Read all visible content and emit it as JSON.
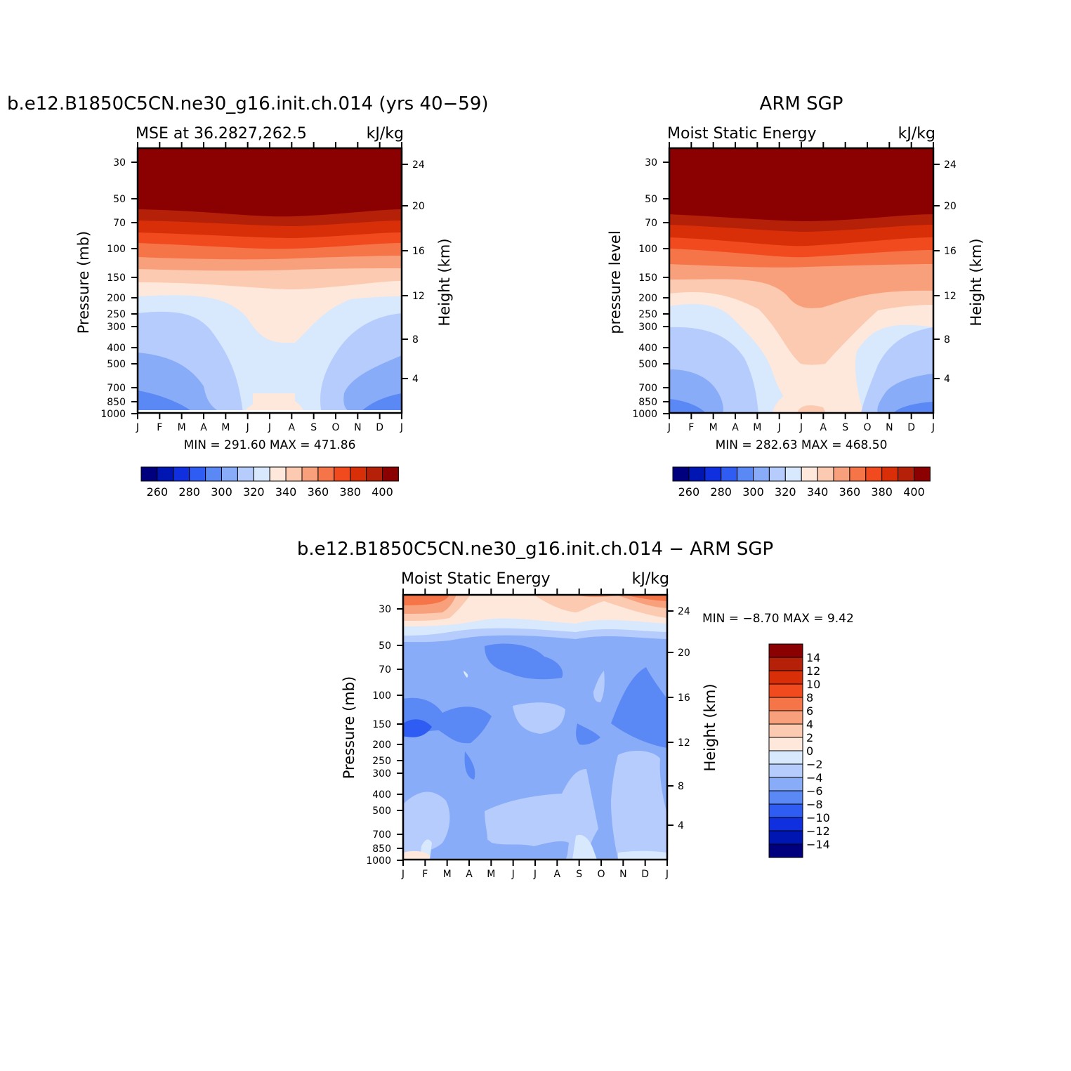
{
  "chart_data": [
    {
      "type": "heatmap",
      "id": "model",
      "title": "b.e12.B1850C5CN.ne30_g16.init.ch.014 (yrs 40−59)",
      "subtitle_left": "MSE at 36.2827,262.5",
      "subtitle_right": "kJ/kg",
      "ylabel": "Pressure (mb)",
      "ylabel_right": "Height (km)",
      "x_ticks": [
        "J",
        "F",
        "M",
        "A",
        "M",
        "J",
        "J",
        "A",
        "S",
        "O",
        "N",
        "D",
        "J"
      ],
      "y_ticks": [
        "30",
        "50",
        "70",
        "100",
        "150",
        "200",
        "250",
        "300",
        "400",
        "500",
        "700",
        "850",
        "1000"
      ],
      "y_ticks_right": [
        "24",
        "20",
        "16",
        "12",
        "8",
        "4"
      ],
      "stats": "MIN =  291.60  MAX =  471.86",
      "colorbar_labels": [
        "260",
        "280",
        "300",
        "320",
        "340",
        "360",
        "380",
        "400"
      ]
    },
    {
      "type": "heatmap",
      "id": "obs",
      "title": "ARM SGP",
      "subtitle_left": "Moist Static Energy",
      "subtitle_right": "kJ/kg",
      "ylabel": "pressure level",
      "ylabel_right": "Height (km)",
      "x_ticks": [
        "J",
        "F",
        "M",
        "A",
        "M",
        "J",
        "J",
        "A",
        "S",
        "O",
        "N",
        "D",
        "J"
      ],
      "y_ticks": [
        "30",
        "50",
        "70",
        "100",
        "150",
        "200",
        "250",
        "300",
        "400",
        "500",
        "700",
        "850",
        "1000"
      ],
      "y_ticks_right": [
        "24",
        "20",
        "16",
        "12",
        "8",
        "4"
      ],
      "stats": "MIN =  282.63  MAX =  468.50",
      "colorbar_labels": [
        "260",
        "280",
        "300",
        "320",
        "340",
        "360",
        "380",
        "400"
      ]
    },
    {
      "type": "heatmap",
      "id": "diff",
      "title": "b.e12.B1850C5CN.ne30_g16.init.ch.014 − ARM SGP",
      "subtitle_left": "Moist Static Energy",
      "subtitle_right": "kJ/kg",
      "ylabel": "Pressure (mb)",
      "ylabel_right": "Height (km)",
      "x_ticks": [
        "J",
        "F",
        "M",
        "A",
        "M",
        "J",
        "J",
        "A",
        "S",
        "O",
        "N",
        "D",
        "J"
      ],
      "y_ticks": [
        "30",
        "50",
        "70",
        "100",
        "150",
        "200",
        "250",
        "300",
        "400",
        "500",
        "700",
        "850",
        "1000"
      ],
      "y_ticks_right": [
        "24",
        "20",
        "16",
        "12",
        "8",
        "4"
      ],
      "stats": "MIN =   −8.70  MAX =    9.42",
      "colorbar_labels": [
        "14",
        "12",
        "10",
        "8",
        "6",
        "4",
        "2",
        "0",
        "−2",
        "−4",
        "−6",
        "−8",
        "−10",
        "−12",
        "−14"
      ]
    }
  ],
  "colors": {
    "seq": [
      "#00007f",
      "#0016b2",
      "#1030e0",
      "#2f5cf2",
      "#5a88f5",
      "#88acf8",
      "#b5ccfc",
      "#d8e8fd",
      "#fde8db",
      "#fccab0",
      "#f8a07c",
      "#f67548",
      "#f24a1f",
      "#d82f08",
      "#b42008",
      "#8b0000"
    ],
    "diff": [
      "#8b0000",
      "#b42008",
      "#d82f08",
      "#f24a1f",
      "#f67548",
      "#f8a07c",
      "#fccab0",
      "#fde8db",
      "#d8e8fd",
      "#b5ccfc",
      "#88acf8",
      "#5a88f5",
      "#2f5cf2",
      "#1030e0",
      "#0016b2",
      "#00007f"
    ]
  }
}
